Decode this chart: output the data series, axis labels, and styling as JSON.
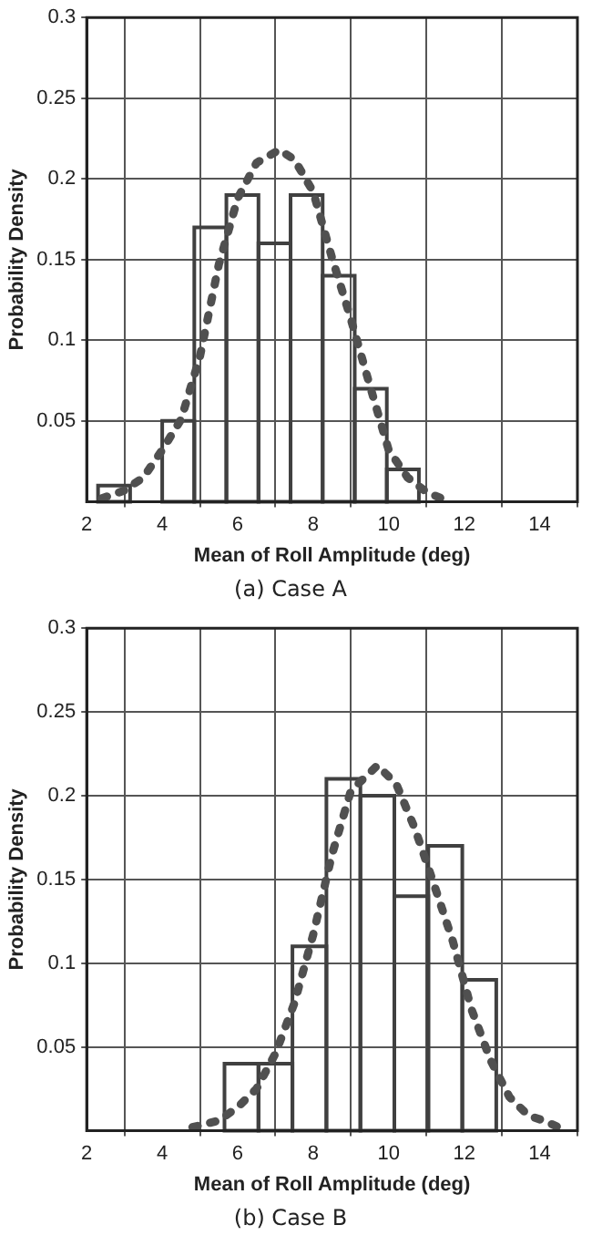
{
  "chart_data": [
    {
      "type": "histogram",
      "title": "(a) Case A",
      "xlabel": "Mean of Roll Amplitude (deg)",
      "ylabel": "Probability Density",
      "xlim": [
        2,
        15
      ],
      "xticks": [
        2,
        4,
        6,
        8,
        10,
        12,
        14
      ],
      "ylim": [
        0,
        0.3
      ],
      "yticks": [
        0.05,
        0.1,
        0.15,
        0.2,
        0.25,
        0.3
      ],
      "grid": true,
      "color": "#404040",
      "bins": [
        2.3,
        3.15,
        4,
        4.85,
        5.7,
        6.55,
        7.4,
        8.25,
        9.1,
        9.95,
        10.8
      ],
      "values": [
        0.01,
        0,
        0.05,
        0.17,
        0.19,
        0.16,
        0.19,
        0.14,
        0.07,
        0.02
      ],
      "series": [
        {
          "type": "line",
          "color": "#505050",
          "line_style": "dotted",
          "x": [
            2.4,
            3,
            3.5,
            4,
            4.5,
            5,
            5.5,
            6,
            6.5,
            7.1,
            7.5,
            8,
            8.5,
            9,
            9.5,
            10,
            10.5,
            11,
            11.4
          ],
          "values": [
            0.002,
            0.007,
            0.015,
            0.032,
            0.051,
            0.09,
            0.147,
            0.188,
            0.21,
            0.218,
            0.212,
            0.192,
            0.151,
            0.113,
            0.072,
            0.032,
            0.015,
            0.006,
            0.002
          ]
        }
      ]
    },
    {
      "type": "histogram",
      "title": "(b) Case B",
      "xlabel": "Mean of Roll Amplitude (deg)",
      "ylabel": "Probability Density",
      "xlim": [
        2,
        15
      ],
      "xticks": [
        2,
        4,
        6,
        8,
        10,
        12,
        14
      ],
      "ylim": [
        0,
        0.3
      ],
      "yticks": [
        0.05,
        0.1,
        0.15,
        0.2,
        0.25,
        0.3
      ],
      "grid": true,
      "color": "#404040",
      "bins": [
        5.65,
        6.55,
        7.45,
        8.35,
        9.25,
        10.15,
        11.05,
        11.95,
        12.85
      ],
      "values": [
        0.04,
        0.04,
        0.11,
        0.21,
        0.2,
        0.14,
        0.17,
        0.09
      ],
      "series": [
        {
          "type": "line",
          "color": "#505050",
          "line_style": "dotted",
          "x": [
            4.8,
            5.5,
            6,
            6.5,
            7,
            7.5,
            8,
            8.5,
            9,
            9.7,
            10.2,
            10.7,
            11.2,
            11.7,
            12.2,
            12.7,
            13.2,
            13.7,
            14.1,
            14.6
          ],
          "values": [
            0.002,
            0.006,
            0.014,
            0.025,
            0.046,
            0.076,
            0.117,
            0.165,
            0.203,
            0.218,
            0.207,
            0.18,
            0.147,
            0.113,
            0.072,
            0.042,
            0.02,
            0.009,
            0.006,
            0.001
          ]
        }
      ]
    }
  ]
}
